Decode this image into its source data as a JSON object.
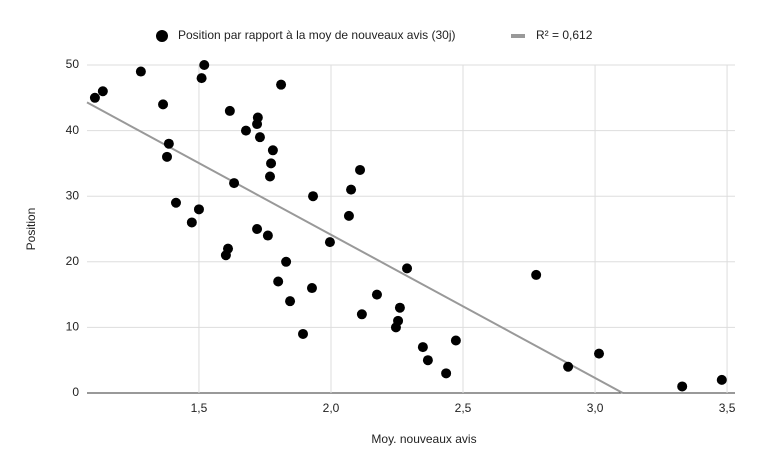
{
  "chart_data": {
    "type": "scatter",
    "x_label": "Moy. nouveaux avis",
    "y_label": "Position",
    "series": [
      {
        "name": "Position par rapport à la moy de nouveaux avis (30j)",
        "color": "#000000",
        "x": [
          1.106,
          1.136,
          1.28,
          1.52,
          1.51,
          1.364,
          1.386,
          1.379,
          1.413,
          1.473,
          1.5,
          1.617,
          1.678,
          1.723,
          1.72,
          1.731,
          1.811,
          1.78,
          1.773,
          1.769,
          1.633,
          1.61,
          1.602,
          1.72,
          1.761,
          1.83,
          1.8,
          1.845,
          1.894,
          1.928,
          1.932,
          1.996,
          2.076,
          2.068,
          2.11,
          2.117,
          2.174,
          2.288,
          2.261,
          2.254,
          2.246,
          2.348,
          2.367,
          2.436,
          2.473,
          2.777,
          2.898,
          3.015,
          3.33,
          3.48
        ],
        "values": [
          45,
          46,
          49,
          50,
          48,
          44,
          38,
          36,
          29,
          26,
          28,
          43,
          40,
          42,
          41,
          39,
          47,
          37,
          35,
          33,
          32,
          22,
          21,
          25,
          24,
          20,
          17,
          14,
          9,
          16,
          30,
          23,
          31,
          27,
          34,
          12,
          15,
          19,
          13,
          11,
          10,
          7,
          5,
          3,
          8,
          18,
          4,
          6,
          1,
          2
        ]
      }
    ],
    "trendline": {
      "name": "R² = 0,612",
      "color": "#999999",
      "x": [
        1.076,
        3.105
      ],
      "values": [
        44.3,
        0
      ]
    },
    "xlim": [
      1.076,
      3.53
    ],
    "ylim": [
      0,
      50
    ],
    "xticks": [
      {
        "value": 1.5,
        "label": "1,5"
      },
      {
        "value": 2.0,
        "label": "2,0"
      },
      {
        "value": 2.5,
        "label": "2,5"
      },
      {
        "value": 3.0,
        "label": "3,0"
      },
      {
        "value": 3.5,
        "label": "3,5"
      }
    ],
    "yticks": [
      0,
      10,
      20,
      30,
      40,
      50
    ],
    "grid": true
  }
}
